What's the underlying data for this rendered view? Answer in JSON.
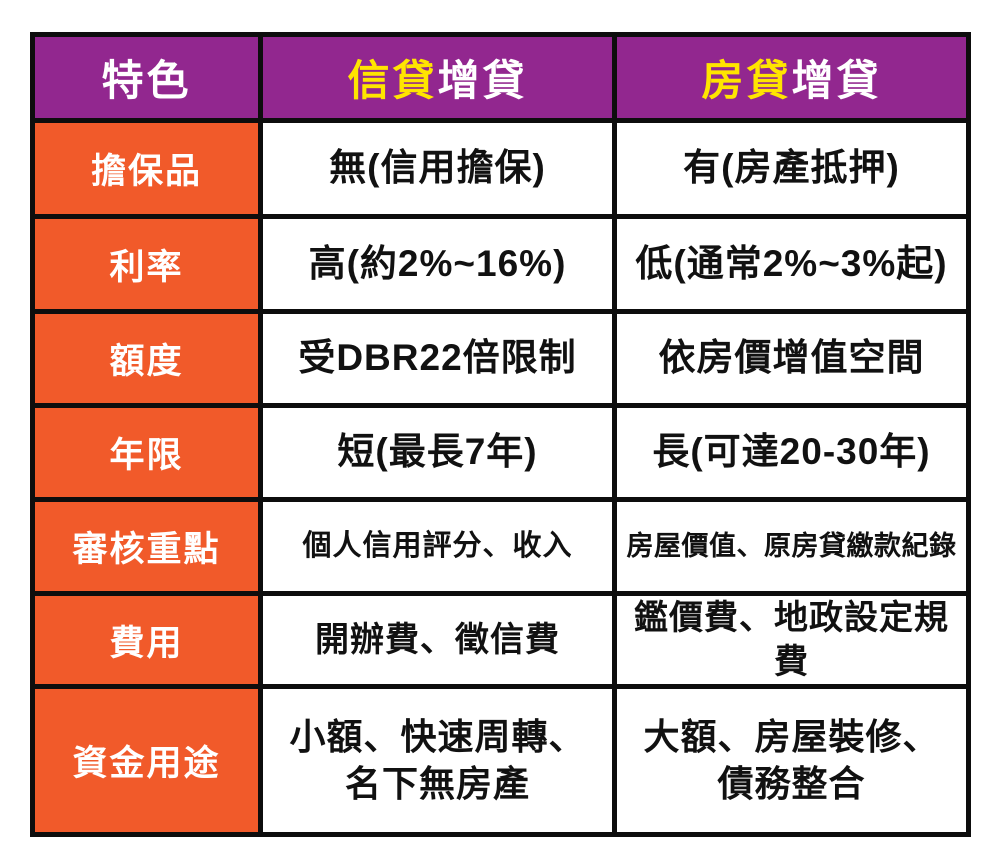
{
  "colors": {
    "header_bg": "#92278F",
    "label_bg": "#F15A2A",
    "highlight": "#FFE500",
    "header_text": "#FFFFFF",
    "body_text": "#111111",
    "border": "#0D0D0D",
    "page_bg": "#FFFFFF"
  },
  "table": {
    "header": {
      "feature": "特色",
      "credit": {
        "highlight": "信貸",
        "rest": "增貸"
      },
      "mortgage": {
        "highlight": "房貸",
        "rest": "增貸"
      }
    },
    "rows": [
      {
        "label": "擔保品",
        "credit": "無(信用擔保)",
        "mortgage": "有(房產抵押)"
      },
      {
        "label": "利率",
        "credit": "高(約2%~16%)",
        "mortgage": "低(通常2%~3%起)"
      },
      {
        "label": "額度",
        "credit": "受DBR22倍限制",
        "mortgage": "依房價增值空間"
      },
      {
        "label": "年限",
        "credit": "短(最長7年)",
        "mortgage": "長(可達20-30年)"
      },
      {
        "label": "審核重點",
        "credit": "個人信用評分、收入",
        "mortgage": "房屋價值、原房貸繳款紀錄"
      },
      {
        "label": "費用",
        "credit": "開辦費、徵信費",
        "mortgage": "鑑價費、地政設定規費"
      },
      {
        "label": "資金用途",
        "credit": "小額、快速周轉、\n名下無房產",
        "mortgage": "大額、房屋裝修、\n債務整合"
      }
    ]
  },
  "chart_data": {
    "type": "table",
    "title": "",
    "columns": [
      "特色",
      "信貸增貸",
      "房貸增貸"
    ],
    "rows": [
      [
        "擔保品",
        "無(信用擔保)",
        "有(房產抵押)"
      ],
      [
        "利率",
        "高(約2%~16%)",
        "低(通常2%~3%起)"
      ],
      [
        "額度",
        "受DBR22倍限制",
        "依房價增值空間"
      ],
      [
        "年限",
        "短(最長7年)",
        "長(可達20-30年)"
      ],
      [
        "審核重點",
        "個人信用評分、收入",
        "房屋價值、原房貸繳款紀錄"
      ],
      [
        "費用",
        "開辦費、徵信費",
        "鑑價費、地政設定規費"
      ],
      [
        "資金用途",
        "小額、快速周轉、名下無房產",
        "大額、房屋裝修、債務整合"
      ]
    ],
    "layout_hints": {
      "header_row_bg": "#92278F",
      "label_column_bg": "#F15A2A",
      "header_keyword_color": "#FFE500",
      "grid": "on"
    }
  }
}
